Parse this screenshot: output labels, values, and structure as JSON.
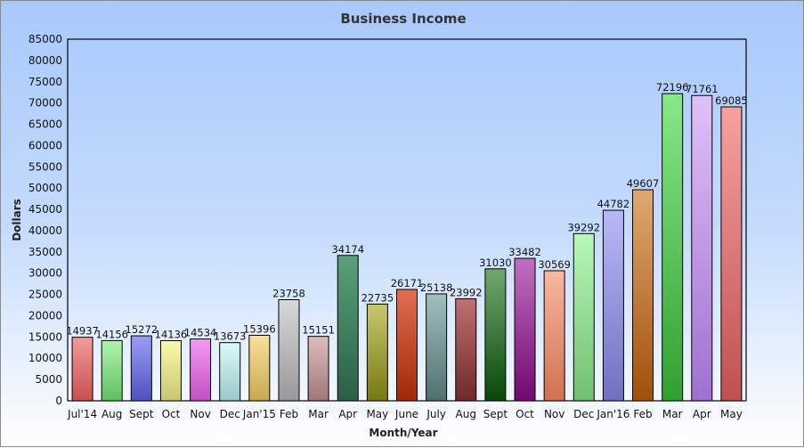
{
  "chart_data": {
    "type": "bar",
    "title": "Business Income",
    "xlabel": "Month/Year",
    "ylabel": "Dollars",
    "ylim": [
      0,
      85000
    ],
    "ytick_step": 5000,
    "grid": false,
    "data_labels": true,
    "categories": [
      "Jul'14",
      "Aug",
      "Sept",
      "Oct",
      "Nov",
      "Dec",
      "Jan'15",
      "Feb",
      "Mar",
      "Apr",
      "May",
      "June",
      "July",
      "Aug",
      "Sept",
      "Oct",
      "Nov",
      "Dec",
      "Jan'16",
      "Feb",
      "Mar",
      "Apr",
      "May"
    ],
    "values": [
      14937,
      14156,
      15272,
      14136,
      14534,
      13673,
      15396,
      23758,
      15151,
      34174,
      22735,
      26171,
      25138,
      23992,
      31030,
      33482,
      30569,
      39292,
      44782,
      49607,
      72196,
      71761,
      69085
    ],
    "colors": [
      [
        "#f49a9a",
        "#c85050"
      ],
      [
        "#b0f5b0",
        "#5cc05c"
      ],
      [
        "#9c9cf5",
        "#5050c0"
      ],
      [
        "#fafaa8",
        "#c8c870"
      ],
      [
        "#f59af5",
        "#c050c0"
      ],
      [
        "#dcfafa",
        "#98c8c8"
      ],
      [
        "#fae09a",
        "#c8a850"
      ],
      [
        "#d8d8d8",
        "#989898"
      ],
      [
        "#dcbcbc",
        "#a07878"
      ],
      [
        "#5aa078",
        "#2a6048"
      ],
      [
        "#c8c870",
        "#787810"
      ],
      [
        "#e07050",
        "#a02808"
      ],
      [
        "#a0c0c0",
        "#507070"
      ],
      [
        "#c07070",
        "#702828"
      ],
      [
        "#70a870",
        "#084808"
      ],
      [
        "#c070c0",
        "#700870"
      ],
      [
        "#f8b8a0",
        "#d07050"
      ],
      [
        "#b8f8b8",
        "#70c070"
      ],
      [
        "#b8b8f8",
        "#7070c0"
      ],
      [
        "#e0a870",
        "#a05008"
      ],
      [
        "#88e888",
        "#30a030"
      ],
      [
        "#e0c0f8",
        "#a070d0"
      ],
      [
        "#f8a0a0",
        "#c05050"
      ]
    ]
  }
}
